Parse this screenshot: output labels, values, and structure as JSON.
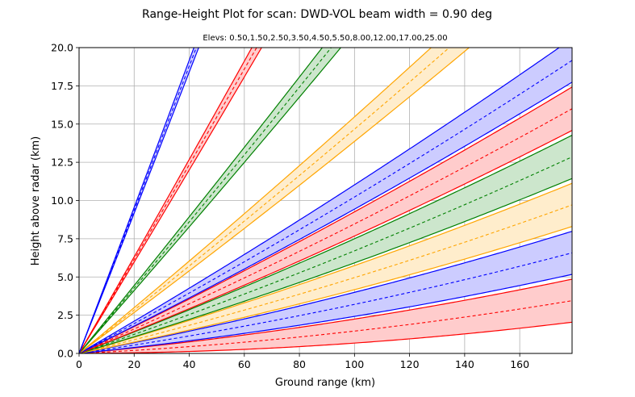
{
  "chart_data": {
    "type": "line",
    "title": "Range-Height Plot for scan: DWD-VOL  beam width = 0.90 deg",
    "subtitle": "Elevs: 0.50,1.50,2.50,3.50,4.50,5.50,8.00,12.00,17.00,25.00",
    "xlabel": "Ground range (km)",
    "ylabel": "Height above radar (km)",
    "xlim": [
      0,
      179
    ],
    "ylim": [
      0,
      20
    ],
    "xticks": [
      0,
      20,
      40,
      60,
      80,
      100,
      120,
      140,
      160
    ],
    "xtick_labels": [
      "0",
      "20",
      "40",
      "60",
      "80",
      "100",
      "120",
      "140",
      "160"
    ],
    "yticks": [
      0,
      2.5,
      5,
      7.5,
      10,
      12.5,
      15,
      17.5,
      20
    ],
    "ytick_labels": [
      "0.0",
      "2.5",
      "5.0",
      "7.5",
      "10.0",
      "12.5",
      "15.0",
      "17.5",
      "20.0"
    ],
    "grid": true,
    "beam_width_deg": 0.9,
    "series": [
      {
        "elevation_deg": 0.5,
        "color": "#ff0000",
        "fill": "#ffcccc"
      },
      {
        "elevation_deg": 1.5,
        "color": "#0000ff",
        "fill": "#ccccff"
      },
      {
        "elevation_deg": 2.5,
        "color": "#ffa500",
        "fill": "#ffedcc"
      },
      {
        "elevation_deg": 3.5,
        "color": "#008000",
        "fill": "#cce6cc"
      },
      {
        "elevation_deg": 4.5,
        "color": "#ff0000",
        "fill": "#ffcccc"
      },
      {
        "elevation_deg": 5.5,
        "color": "#0000ff",
        "fill": "#ccccff"
      },
      {
        "elevation_deg": 8.0,
        "color": "#ffa500",
        "fill": "#ffedcc"
      },
      {
        "elevation_deg": 12.0,
        "color": "#008000",
        "fill": "#cce6cc"
      },
      {
        "elevation_deg": 17.0,
        "color": "#ff0000",
        "fill": "#ffcccc"
      },
      {
        "elevation_deg": 25.0,
        "color": "#0000ff",
        "fill": "#ccccff"
      }
    ]
  }
}
